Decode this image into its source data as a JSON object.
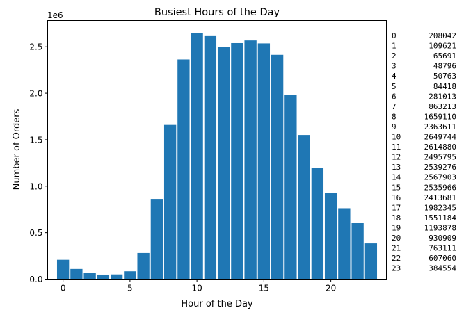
{
  "chart_data": {
    "type": "bar",
    "title": "Busiest Hours of the Day",
    "xlabel": "Hour of the Day",
    "ylabel": "Number of Orders",
    "y_offset_label": "1e6",
    "x": [
      0,
      1,
      2,
      3,
      4,
      5,
      6,
      7,
      8,
      9,
      10,
      11,
      12,
      13,
      14,
      15,
      16,
      17,
      18,
      19,
      20,
      21,
      22,
      23
    ],
    "values": [
      208042,
      109621,
      65691,
      48796,
      50763,
      84418,
      281013,
      863213,
      1659110,
      2363611,
      2649744,
      2614880,
      2495795,
      2539276,
      2567903,
      2535966,
      2413681,
      1982345,
      1551184,
      1193878,
      930909,
      763111,
      607060,
      384554
    ],
    "xlim": [
      -1.15,
      24.15
    ],
    "ylim": [
      0,
      2782231
    ],
    "x_ticks": [
      0,
      5,
      10,
      15,
      20
    ],
    "x_tick_labels": [
      "0",
      "5",
      "10",
      "15",
      "20"
    ],
    "y_ticks": [
      0,
      500000,
      1000000,
      1500000,
      2000000,
      2500000
    ],
    "y_tick_labels": [
      "0.0",
      "0.5",
      "1.0",
      "1.5",
      "2.0",
      "2.5"
    ],
    "bar_color": "#1f77b4",
    "grid": false,
    "legend": "none"
  },
  "side_table": {
    "rows": [
      [
        "0",
        "208042"
      ],
      [
        "1",
        "109621"
      ],
      [
        "2",
        "65691"
      ],
      [
        "3",
        "48796"
      ],
      [
        "4",
        "50763"
      ],
      [
        "5",
        "84418"
      ],
      [
        "6",
        "281013"
      ],
      [
        "7",
        "863213"
      ],
      [
        "8",
        "1659110"
      ],
      [
        "9",
        "2363611"
      ],
      [
        "10",
        "2649744"
      ],
      [
        "11",
        "2614880"
      ],
      [
        "12",
        "2495795"
      ],
      [
        "13",
        "2539276"
      ],
      [
        "14",
        "2567903"
      ],
      [
        "15",
        "2535966"
      ],
      [
        "16",
        "2413681"
      ],
      [
        "17",
        "1982345"
      ],
      [
        "18",
        "1551184"
      ],
      [
        "19",
        "1193878"
      ],
      [
        "20",
        "930909"
      ],
      [
        "21",
        "763111"
      ],
      [
        "22",
        "607060"
      ],
      [
        "23",
        "384554"
      ]
    ]
  }
}
